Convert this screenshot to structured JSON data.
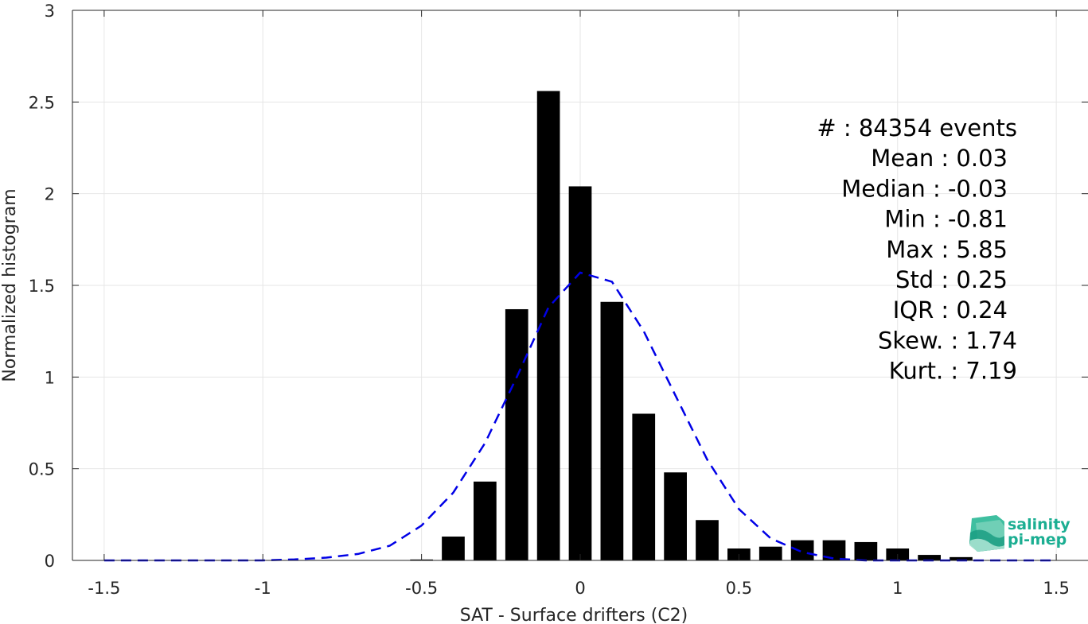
{
  "chart_data": {
    "type": "bar",
    "xlabel": "SAT - Surface drifters (C2)",
    "ylabel": "Normalized histogram",
    "xlim": [
      -1.6,
      1.6
    ],
    "ylim": [
      0,
      3
    ],
    "xticks": [
      "-1.5",
      "-1",
      "-0.5",
      "0",
      "0.5",
      "1",
      "1.5"
    ],
    "yticks": [
      "0",
      "0.5",
      "1",
      "1.5",
      "2",
      "2.5",
      "3"
    ],
    "grid": true,
    "bin_width": 0.1,
    "bins": [
      {
        "x": -1.5,
        "y": 0.0
      },
      {
        "x": -1.4,
        "y": 0.0
      },
      {
        "x": -1.3,
        "y": 0.0
      },
      {
        "x": -1.2,
        "y": 0.0
      },
      {
        "x": -1.1,
        "y": 0.0
      },
      {
        "x": -1.0,
        "y": 0.0
      },
      {
        "x": -0.9,
        "y": 0.0
      },
      {
        "x": -0.8,
        "y": 0.0
      },
      {
        "x": -0.7,
        "y": 0.0
      },
      {
        "x": -0.6,
        "y": 0.002
      },
      {
        "x": -0.5,
        "y": 0.005
      },
      {
        "x": -0.4,
        "y": 0.13
      },
      {
        "x": -0.3,
        "y": 0.43
      },
      {
        "x": -0.2,
        "y": 1.37
      },
      {
        "x": -0.1,
        "y": 2.56
      },
      {
        "x": 0.0,
        "y": 2.04
      },
      {
        "x": 0.1,
        "y": 1.41
      },
      {
        "x": 0.2,
        "y": 0.8
      },
      {
        "x": 0.3,
        "y": 0.48
      },
      {
        "x": 0.4,
        "y": 0.22
      },
      {
        "x": 0.5,
        "y": 0.065
      },
      {
        "x": 0.6,
        "y": 0.075
      },
      {
        "x": 0.7,
        "y": 0.11
      },
      {
        "x": 0.8,
        "y": 0.11
      },
      {
        "x": 0.9,
        "y": 0.1
      },
      {
        "x": 1.0,
        "y": 0.065
      },
      {
        "x": 1.1,
        "y": 0.03
      },
      {
        "x": 1.2,
        "y": 0.018
      },
      {
        "x": 1.3,
        "y": 0.0
      },
      {
        "x": 1.4,
        "y": 0.0
      },
      {
        "x": 1.5,
        "y": 0.0
      }
    ],
    "fit_curve": {
      "style": "dashed",
      "color": "#0000e6",
      "points": [
        [
          -1.5,
          0.0
        ],
        [
          -1.4,
          0.0
        ],
        [
          -1.3,
          0.0
        ],
        [
          -1.2,
          0.0
        ],
        [
          -1.1,
          0.0
        ],
        [
          -1.0,
          0.0
        ],
        [
          -0.9,
          0.005
        ],
        [
          -0.8,
          0.015
        ],
        [
          -0.7,
          0.035
        ],
        [
          -0.6,
          0.08
        ],
        [
          -0.5,
          0.19
        ],
        [
          -0.4,
          0.37
        ],
        [
          -0.3,
          0.64
        ],
        [
          -0.2,
          1.0
        ],
        [
          -0.1,
          1.38
        ],
        [
          0.0,
          1.57
        ],
        [
          0.1,
          1.52
        ],
        [
          0.2,
          1.25
        ],
        [
          0.3,
          0.9
        ],
        [
          0.4,
          0.55
        ],
        [
          0.5,
          0.28
        ],
        [
          0.6,
          0.12
        ],
        [
          0.7,
          0.045
        ],
        [
          0.8,
          0.01
        ],
        [
          0.9,
          0.0
        ],
        [
          1.0,
          0.0
        ],
        [
          1.1,
          0.0
        ],
        [
          1.2,
          0.0
        ],
        [
          1.3,
          0.0
        ],
        [
          1.4,
          0.0
        ],
        [
          1.5,
          0.0
        ]
      ]
    },
    "annotations": [
      "#  : 84354 events",
      "Mean : 0.03",
      "Median : -0.03",
      "Min : -0.81",
      "Max : 5.85",
      "Std : 0.25",
      "IQR : 0.24",
      "Skew. : 1.74",
      "Kurt. : 7.19"
    ],
    "colors": {
      "bar": "#000000",
      "grid": "#e6e6e6",
      "axis": "#262626",
      "fit": "#0000e6"
    }
  },
  "logo": {
    "line1": "salinity",
    "line2": "pi-mep",
    "icon": "salinity-logo-icon",
    "color": "#1bae92"
  }
}
